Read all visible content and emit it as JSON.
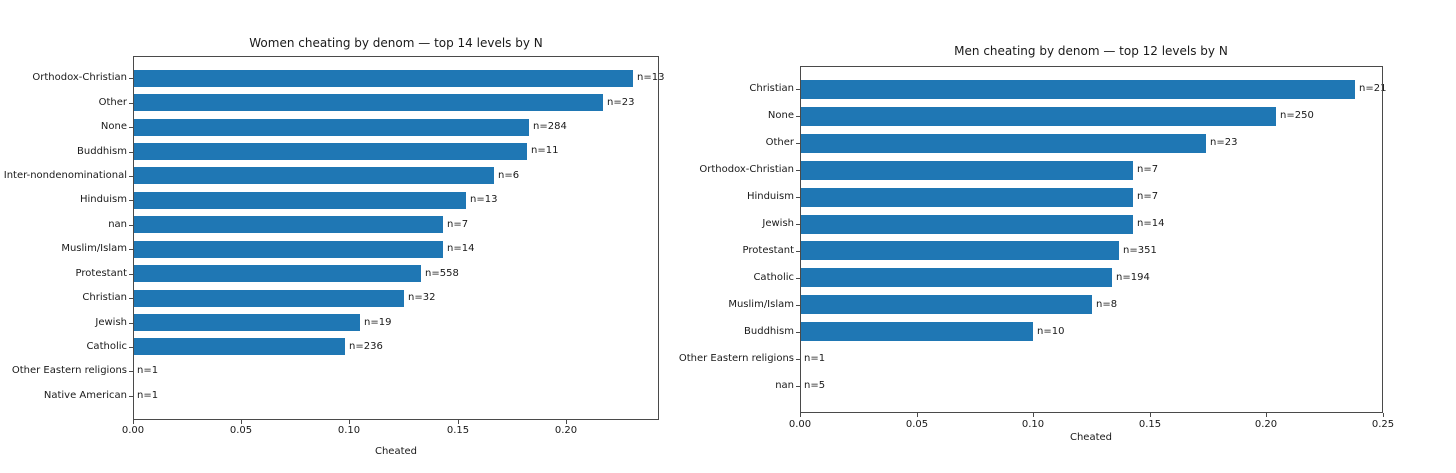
{
  "chart_data": [
    {
      "type": "bar",
      "orientation": "horizontal",
      "title": "Women cheating by denom — top 14 levels by N",
      "xlabel": "Cheated",
      "ylabel": "",
      "xlim": [
        0,
        0.243
      ],
      "xticks": [
        0.0,
        0.05,
        0.1,
        0.15,
        0.2
      ],
      "xtick_labels": [
        "0.00",
        "0.05",
        "0.10",
        "0.15",
        "0.20"
      ],
      "grid": false,
      "bar_color": "#1f77b4",
      "categories": [
        "Orthodox-Christian",
        "Other",
        "None",
        "Buddhism",
        "Inter-nondenominational",
        "Hinduism",
        "nan",
        "Muslim/Islam",
        "Protestant",
        "Christian",
        "Jewish",
        "Catholic",
        "Other Eastern religions",
        "Native American"
      ],
      "values": [
        0.231,
        0.217,
        0.183,
        0.182,
        0.167,
        0.154,
        0.143,
        0.143,
        0.133,
        0.125,
        0.105,
        0.098,
        0.0,
        0.0
      ],
      "annotations": [
        "n=13",
        "n=23",
        "n=284",
        "n=11",
        "n=6",
        "n=13",
        "n=7",
        "n=14",
        "n=558",
        "n=32",
        "n=19",
        "n=236",
        "n=1",
        "n=1"
      ]
    },
    {
      "type": "bar",
      "orientation": "horizontal",
      "title": "Men cheating by denom — top 12 levels by N",
      "xlabel": "Cheated",
      "ylabel": "",
      "xlim": [
        0,
        0.25
      ],
      "xticks": [
        0.0,
        0.05,
        0.1,
        0.15,
        0.2,
        0.25
      ],
      "xtick_labels": [
        "0.00",
        "0.05",
        "0.10",
        "0.15",
        "0.20",
        "0.25"
      ],
      "grid": false,
      "bar_color": "#1f77b4",
      "categories": [
        "Christian",
        "None",
        "Other",
        "Orthodox-Christian",
        "Hinduism",
        "Jewish",
        "Protestant",
        "Catholic",
        "Muslim/Islam",
        "Buddhism",
        "Other Eastern religions",
        "nan"
      ],
      "values": [
        0.238,
        0.204,
        0.174,
        0.143,
        0.143,
        0.143,
        0.137,
        0.134,
        0.125,
        0.1,
        0.0,
        0.0
      ],
      "annotations": [
        "n=21",
        "n=250",
        "n=23",
        "n=7",
        "n=7",
        "n=14",
        "n=351",
        "n=194",
        "n=8",
        "n=10",
        "n=1",
        "n=5"
      ]
    }
  ],
  "colors": {
    "bar": "#1f77b4",
    "spine": "#4a4a4a",
    "text": "#1a1a1a",
    "background": "#ffffff"
  }
}
